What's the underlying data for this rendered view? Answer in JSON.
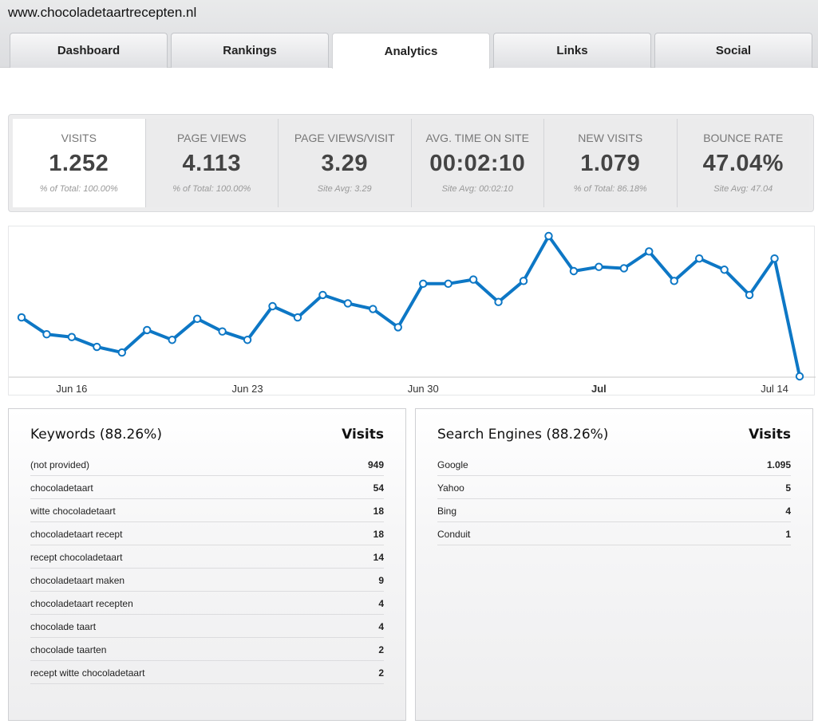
{
  "header": {
    "url": "www.chocoladetaartrecepten.nl"
  },
  "tabs": [
    {
      "label": "Dashboard"
    },
    {
      "label": "Rankings"
    },
    {
      "label": "Analytics"
    },
    {
      "label": "Links"
    },
    {
      "label": "Social"
    }
  ],
  "active_tab": "Analytics",
  "stats": [
    {
      "label": "VISITS",
      "value": "1.252",
      "sub": "% of Total: 100.00%"
    },
    {
      "label": "PAGE VIEWS",
      "value": "4.113",
      "sub": "% of Total: 100.00%"
    },
    {
      "label": "PAGE VIEWS/VISIT",
      "value": "3.29",
      "sub": "Site Avg: 3.29"
    },
    {
      "label": "AVG. TIME ON SITE",
      "value": "00:02:10",
      "sub": "Site Avg: 00:02:10"
    },
    {
      "label": "NEW VISITS",
      "value": "1.079",
      "sub": "% of Total: 86.18%"
    },
    {
      "label": "BOUNCE RATE",
      "value": "47.04%",
      "sub": "Site Avg: 47.04"
    }
  ],
  "chart_data": {
    "type": "line",
    "x": [
      "2013-06-14",
      "2013-06-15",
      "2013-06-16",
      "2013-06-17",
      "2013-06-18",
      "2013-06-19",
      "2013-06-20",
      "2013-06-21",
      "2013-06-22",
      "2013-06-23",
      "2013-06-24",
      "2013-06-25",
      "2013-06-26",
      "2013-06-27",
      "2013-06-28",
      "2013-06-29",
      "2013-06-30",
      "2013-07-01",
      "2013-07-02",
      "2013-07-03",
      "2013-07-04",
      "2013-07-05",
      "2013-07-06",
      "2013-07-07",
      "2013-07-08",
      "2013-07-09",
      "2013-07-10",
      "2013-07-11",
      "2013-07-12",
      "2013-07-13",
      "2013-07-14",
      "2013-07-15"
    ],
    "series": [
      {
        "values": [
          42,
          30,
          28,
          21,
          17,
          33,
          26,
          41,
          32,
          26,
          50,
          42,
          58,
          52,
          48,
          35,
          66,
          66,
          69,
          53,
          68,
          100,
          75,
          78,
          77,
          89,
          68,
          84,
          76,
          58,
          84,
          0
        ]
      }
    ],
    "x_tick_labels": [
      {
        "text": "Jun 16",
        "bold": false
      },
      {
        "text": "Jun 23",
        "bold": false
      },
      {
        "text": "Jun 30",
        "bold": false
      },
      {
        "text": "Jul",
        "bold": true
      },
      {
        "text": "Jul 14",
        "bold": false
      }
    ],
    "x_tick_index": [
      2,
      9,
      16,
      23,
      30
    ],
    "ylim": [
      0,
      100
    ],
    "grid": false,
    "line_color": "#0d77c5"
  },
  "keywords": {
    "title": "Keywords (88.26%)",
    "col": "Visits",
    "rows": [
      {
        "label": "(not provided)",
        "value": "949"
      },
      {
        "label": "chocoladetaart",
        "value": "54"
      },
      {
        "label": "witte chocoladetaart",
        "value": "18"
      },
      {
        "label": "chocoladetaart recept",
        "value": "18"
      },
      {
        "label": "recept chocoladetaart",
        "value": "14"
      },
      {
        "label": "chocoladetaart maken",
        "value": "9"
      },
      {
        "label": "chocoladetaart recepten",
        "value": "4"
      },
      {
        "label": "chocolade taart",
        "value": "4"
      },
      {
        "label": "chocolade taarten",
        "value": "2"
      },
      {
        "label": "recept witte chocoladetaart",
        "value": "2"
      }
    ]
  },
  "engines": {
    "title": "Search Engines (88.26%)",
    "col": "Visits",
    "rows": [
      {
        "label": "Google",
        "value": "1.095"
      },
      {
        "label": "Yahoo",
        "value": "5"
      },
      {
        "label": "Bing",
        "value": "4"
      },
      {
        "label": "Conduit",
        "value": "1"
      }
    ]
  }
}
